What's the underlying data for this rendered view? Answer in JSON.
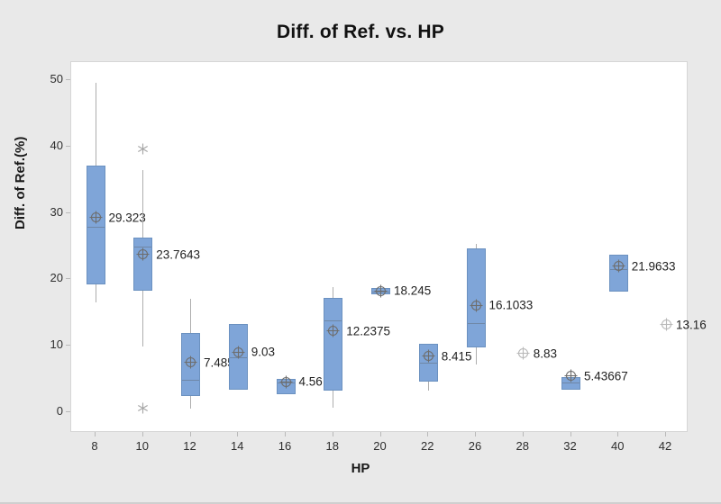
{
  "title": "Diff. of Ref. vs. HP",
  "axes": {
    "x_label": "HP",
    "y_label": "Diff. of Ref.(%)",
    "y_ticks": [
      0,
      10,
      20,
      30,
      40,
      50
    ]
  },
  "colors": {
    "background": "#e9e9e9",
    "plot_background": "#ffffff",
    "box_fill": "#7fa5d8",
    "box_border": "#6b91c0",
    "median_line": "#6f87a6",
    "whisker": "#aeaeae",
    "mean_marker": "#6e6e6e",
    "solo_mean_marker": "#b9b9b9",
    "outlier": "#a6a6a6",
    "text": "#222222"
  },
  "chart_data": {
    "type": "box",
    "title": "Diff. of Ref. vs. HP",
    "xlabel": "HP",
    "ylabel": "Diff. of Ref.(%)",
    "ylim": [
      -3,
      52.7
    ],
    "grid": false,
    "categories": [
      "8",
      "10",
      "12",
      "14",
      "16",
      "18",
      "20",
      "22",
      "26",
      "28",
      "32",
      "40",
      "42"
    ],
    "boxes": [
      {
        "hp": "8",
        "mean": 29.323,
        "label": "29.323",
        "q1": 19.3,
        "median": 27.9,
        "q3": 37.1,
        "whisker_low": 16.5,
        "whisker_high": 49.6,
        "outliers": []
      },
      {
        "hp": "10",
        "mean": 23.7643,
        "label": "23.7643",
        "q1": 18.3,
        "median": 24.9,
        "q3": 26.3,
        "whisker_low": 9.9,
        "whisker_high": 36.5,
        "outliers": [
          39.7,
          0.6
        ]
      },
      {
        "hp": "12",
        "mean": 7.485,
        "label": "7.485",
        "q1": 2.4,
        "median": 4.9,
        "q3": 11.9,
        "whisker_low": 0.5,
        "whisker_high": 17.1,
        "outliers": []
      },
      {
        "hp": "14",
        "mean": 9.03,
        "label": "9.03",
        "q1": 3.4,
        "median": 8.3,
        "q3": 13.3,
        "whisker_low": 3.4,
        "whisker_high": 13.3,
        "outliers": []
      },
      {
        "hp": "16",
        "mean": 4.56,
        "label": "4.56",
        "q1": 2.7,
        "median": 4.5,
        "q3": 5.0,
        "whisker_low": 2.7,
        "whisker_high": 5.0,
        "outliers": []
      },
      {
        "hp": "18",
        "mean": 12.2375,
        "label": "12.2375",
        "q1": 3.3,
        "median": 13.8,
        "q3": 17.2,
        "whisker_low": 0.7,
        "whisker_high": 18.8,
        "outliers": []
      },
      {
        "hp": "20",
        "mean": 18.245,
        "label": "18.245",
        "q1": 17.7,
        "median": 18.2,
        "q3": 18.7,
        "whisker_low": 17.7,
        "whisker_high": 18.7,
        "outliers": []
      },
      {
        "hp": "22",
        "mean": 8.415,
        "label": "8.415",
        "q1": 4.6,
        "median": 7.5,
        "q3": 10.3,
        "whisker_low": 3.3,
        "whisker_high": 10.3,
        "outliers": []
      },
      {
        "hp": "26",
        "mean": 16.1033,
        "label": "16.1033",
        "q1": 9.8,
        "median": 13.4,
        "q3": 24.6,
        "whisker_low": 7.2,
        "whisker_high": 25.4,
        "outliers": []
      },
      {
        "hp": "28",
        "mean": 8.83,
        "label": "8.83",
        "solo": true
      },
      {
        "hp": "32",
        "mean": 5.43667,
        "label": "5.43667",
        "q1": 3.4,
        "median": 4.5,
        "q3": 5.3,
        "whisker_low": 3.4,
        "whisker_high": 5.3,
        "outliers": []
      },
      {
        "hp": "40",
        "mean": 21.9633,
        "label": "21.9633",
        "q1": 18.2,
        "median": 21.5,
        "q3": 23.7,
        "whisker_low": 18.2,
        "whisker_high": 23.7,
        "outliers": []
      },
      {
        "hp": "42",
        "mean": 13.16,
        "label": "13.16",
        "solo": true
      }
    ]
  }
}
